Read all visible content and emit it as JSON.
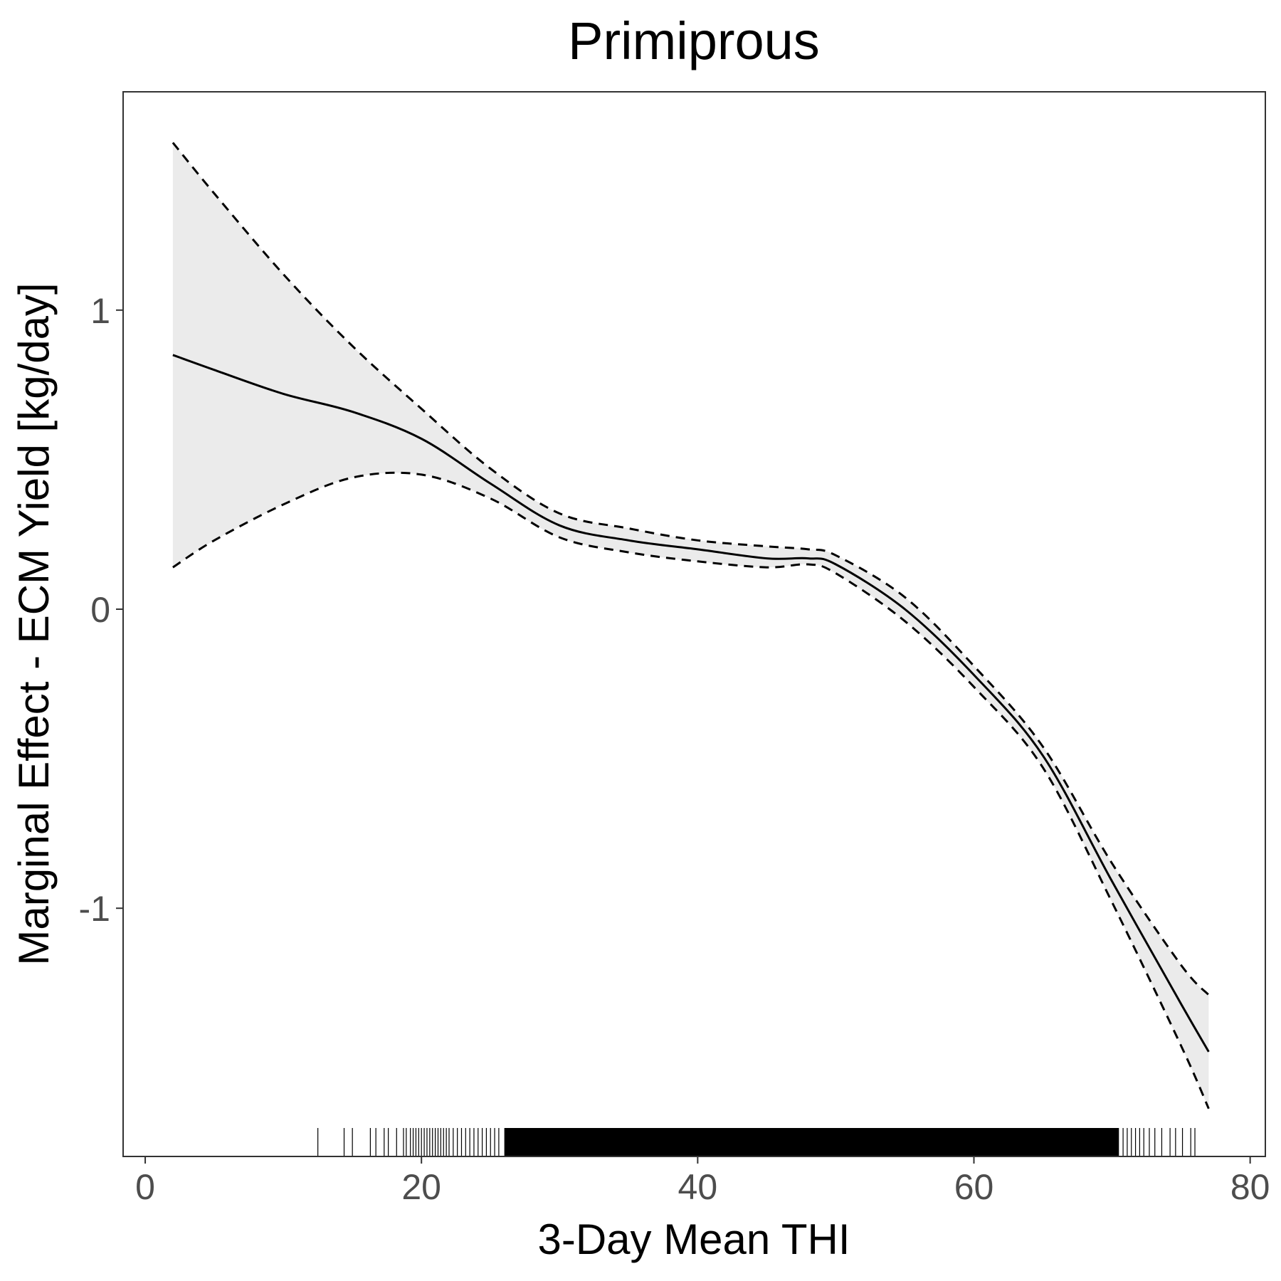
{
  "chart_data": {
    "type": "line",
    "title": "Primiprous",
    "xlabel": "3-Day Mean THI",
    "ylabel": "Marginal Effect - ECM Yield [kg/day]",
    "xlim": [
      -1.6,
      81.1
    ],
    "ylim": [
      -1.83,
      1.73
    ],
    "x_ticks": [
      0,
      20,
      40,
      60,
      80
    ],
    "x_tick_labels": [
      "0",
      "20",
      "40",
      "60",
      "80"
    ],
    "y_ticks": [
      -1,
      0,
      1
    ],
    "y_tick_labels": [
      "-1",
      "0",
      "1"
    ],
    "grid": false,
    "legend": "none",
    "series": [
      {
        "style": "solid",
        "color": "#000000",
        "x": [
          2,
          5,
          10,
          15,
          20,
          25,
          30,
          35,
          40,
          45,
          48,
          50,
          55,
          60,
          65,
          70,
          75,
          77
        ],
        "values": [
          0.85,
          0.8,
          0.72,
          0.66,
          0.57,
          0.42,
          0.28,
          0.23,
          0.2,
          0.17,
          0.17,
          0.15,
          0.0,
          -0.22,
          -0.49,
          -0.91,
          -1.32,
          -1.48
        ]
      }
    ],
    "confidence_band": {
      "fill": "#ebebeb",
      "line_style": "dashed",
      "x": [
        2,
        5,
        10,
        15,
        20,
        25,
        30,
        35,
        40,
        45,
        48,
        50,
        55,
        60,
        65,
        70,
        75,
        77
      ],
      "upper": [
        1.56,
        1.39,
        1.12,
        0.88,
        0.67,
        0.47,
        0.32,
        0.27,
        0.23,
        0.21,
        0.2,
        0.18,
        0.04,
        -0.19,
        -0.46,
        -0.85,
        -1.19,
        -1.29
      ],
      "lower": [
        0.14,
        0.23,
        0.35,
        0.44,
        0.45,
        0.37,
        0.24,
        0.19,
        0.16,
        0.14,
        0.15,
        0.12,
        -0.04,
        -0.26,
        -0.53,
        -0.98,
        -1.46,
        -1.67
      ]
    },
    "rug": {
      "color": "#000000",
      "x_min": 12.5,
      "x_max": 76.0,
      "dense_min": 26.0,
      "dense_max": 70.5,
      "sparse_x": [
        12.5,
        14.4,
        15.0,
        16.3,
        16.7,
        17.3,
        17.6,
        18.2,
        18.7,
        18.9,
        19.2,
        19.4,
        19.6,
        19.8,
        20.0,
        20.2,
        20.4,
        20.6,
        20.8,
        21.0,
        21.2,
        21.4,
        21.6,
        21.8,
        22.0,
        22.3,
        22.6,
        22.9,
        23.2,
        23.5,
        23.8,
        24.1,
        24.4,
        24.7,
        25.0,
        25.3,
        25.6,
        70.8,
        71.1,
        71.4,
        71.7,
        72.0,
        72.3,
        72.7,
        73.1,
        73.6,
        74.2,
        74.6,
        75.1,
        75.7,
        76.0
      ]
    }
  }
}
